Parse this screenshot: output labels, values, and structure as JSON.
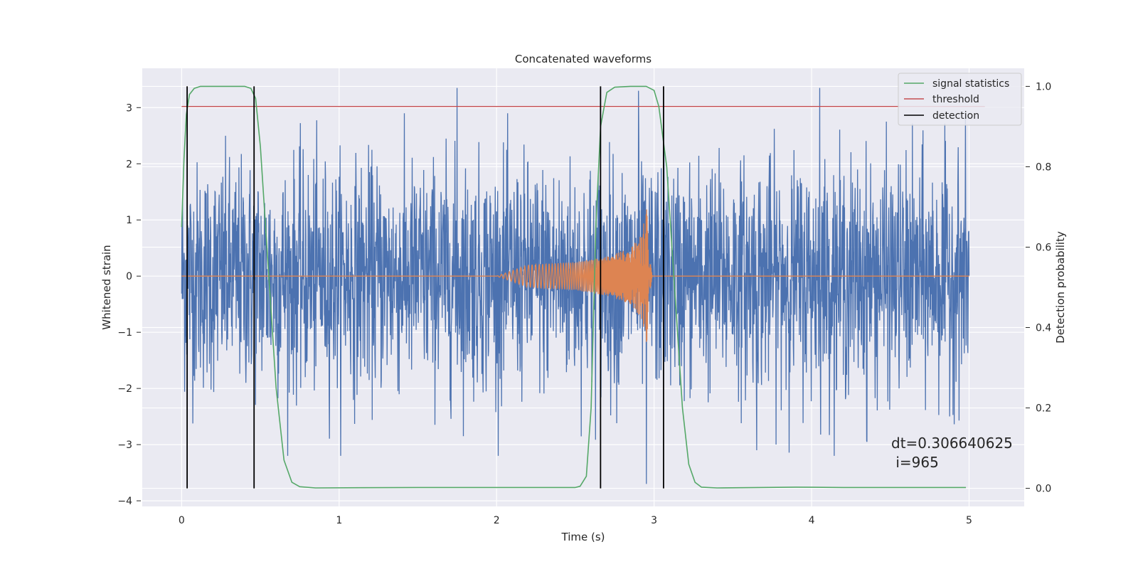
{
  "chart_data": {
    "type": "line",
    "title": "Concatenated waveforms",
    "xlabel": "Time (s)",
    "ylabel_left": "Whitened strain",
    "ylabel_right": "Detection probability",
    "xlim": [
      -0.25,
      5.35
    ],
    "ylim_left": [
      -4.1,
      3.7
    ],
    "ylim_right": [
      -0.045,
      1.045
    ],
    "x_ticks": [
      0,
      1,
      2,
      3,
      4,
      5
    ],
    "x_tick_labels": [
      "0",
      "1",
      "2",
      "3",
      "4",
      "5"
    ],
    "y_left_ticks": [
      3,
      2,
      1,
      0,
      -1,
      -2,
      -3,
      -4
    ],
    "y_left_tick_labels": [
      "3",
      "2",
      "1",
      "0",
      "−1",
      "−2",
      "−3",
      "−4"
    ],
    "y_right_ticks": [
      1.0,
      0.8,
      0.6,
      0.4,
      0.2,
      0.0
    ],
    "y_right_tick_labels": [
      "1.0",
      "0.8",
      "0.6",
      "0.4",
      "0.2",
      "0.0"
    ],
    "grid": true,
    "legend_position": "top-right",
    "legend": [
      {
        "label": "signal statistics",
        "color": "#55a868"
      },
      {
        "label": "threshold",
        "color": "#c44e52"
      },
      {
        "label": "detection",
        "color": "#000000"
      }
    ],
    "series": [
      {
        "name": "whitened strain (noise)",
        "axis": "left",
        "color": "#4c72b0",
        "x_range": [
          0,
          5
        ],
        "envelope_typical": 1.0,
        "peaks_high": [
          3.35,
          3.3,
          3.35,
          2.5
        ],
        "peaks_low": [
          -3.7,
          -3.1,
          -2.95
        ]
      },
      {
        "name": "injected chirp",
        "axis": "left",
        "color": "#dd8452",
        "x": [
          0,
          2.0,
          2.2,
          2.5,
          2.7,
          2.85,
          2.92,
          2.96,
          2.97,
          2.99,
          5.0
        ],
        "amplitude": [
          0,
          0,
          0.2,
          0.25,
          0.35,
          0.5,
          0.75,
          1.3,
          1.2,
          0,
          0
        ]
      },
      {
        "name": "signal statistics",
        "axis": "right",
        "color": "#55a868",
        "x": [
          0,
          0.015,
          0.03,
          0.05,
          0.08,
          0.12,
          0.2,
          0.4,
          0.44,
          0.47,
          0.5,
          0.55,
          0.6,
          0.65,
          0.7,
          0.75,
          0.85,
          1.5,
          2.5,
          2.53,
          2.57,
          2.6,
          2.63,
          2.66,
          2.7,
          2.75,
          2.85,
          2.95,
          3.0,
          3.03,
          3.08,
          3.13,
          3.18,
          3.22,
          3.26,
          3.3,
          3.4,
          3.9,
          4.2,
          4.98
        ],
        "y": [
          0.65,
          0.82,
          0.93,
          0.98,
          0.995,
          1.0,
          1.0,
          1.0,
          0.995,
          0.97,
          0.85,
          0.55,
          0.25,
          0.07,
          0.015,
          0.004,
          0.001,
          0.002,
          0.002,
          0.005,
          0.03,
          0.2,
          0.65,
          0.9,
          0.985,
          0.998,
          1.0,
          1.0,
          0.99,
          0.95,
          0.8,
          0.5,
          0.2,
          0.06,
          0.015,
          0.003,
          0.001,
          0.003,
          0.002,
          0.002
        ]
      },
      {
        "name": "threshold",
        "axis": "left",
        "color": "#c44e52",
        "x": [
          0,
          5.1
        ],
        "y": [
          3.02,
          3.02
        ]
      },
      {
        "name": "detection",
        "axis": "right",
        "color": "#000000",
        "x": [
          0.035,
          0.46,
          2.66,
          3.06
        ],
        "ymin": 0,
        "ymax": 1
      }
    ],
    "annotation": {
      "line1": "dt=0.306640625",
      "line2": " i=965"
    }
  }
}
